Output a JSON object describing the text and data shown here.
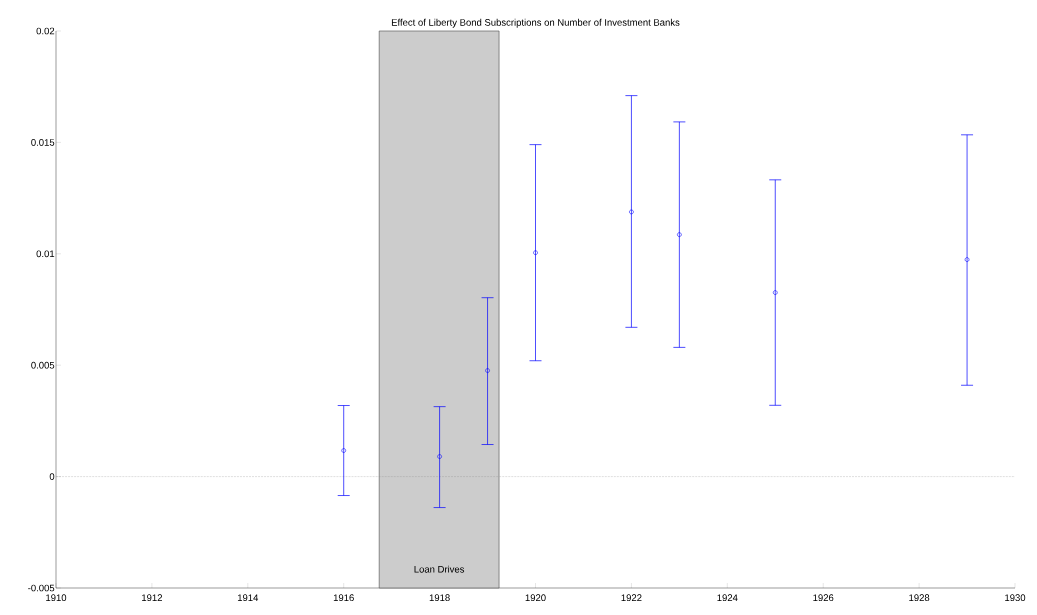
{
  "chart_data": {
    "type": "scatter",
    "title": "Effect of Liberty Bond Subscriptions on Number of Investment Banks",
    "x": [
      1916,
      1918,
      1919,
      1920,
      1922,
      1923,
      1925,
      1929
    ],
    "values": [
      0.00117,
      0.0009,
      0.00476,
      0.01005,
      0.01188,
      0.01086,
      0.00826,
      0.00974
    ],
    "errors": [
      [
        -0.00085,
        0.00319
      ],
      [
        -0.00139,
        0.00314
      ],
      [
        0.00144,
        0.00803
      ],
      [
        0.0052,
        0.0149
      ],
      [
        0.0067,
        0.0171
      ],
      [
        0.0058,
        0.01592
      ],
      [
        0.0032,
        0.01332
      ],
      [
        0.0041,
        0.01534
      ]
    ],
    "color": "#0000ff",
    "marker": "circle",
    "xlim": [
      1910,
      1930
    ],
    "xticks": [
      1910,
      1912,
      1914,
      1916,
      1918,
      1920,
      1922,
      1924,
      1926,
      1928,
      1930
    ],
    "ylim": [
      -0.005,
      0.02
    ],
    "yticks": [
      -0.005,
      0,
      0.005,
      0.01,
      0.015,
      0.02
    ],
    "ref_lines": [
      {
        "axis": "y",
        "value": 0,
        "color": "#808080",
        "line_style": "dotted"
      }
    ],
    "bands": [
      {
        "axis": "x",
        "from": 1916.74,
        "to": 1919.24,
        "label": "Loan Drives",
        "color": "#cccccc"
      }
    ],
    "grid": false
  }
}
